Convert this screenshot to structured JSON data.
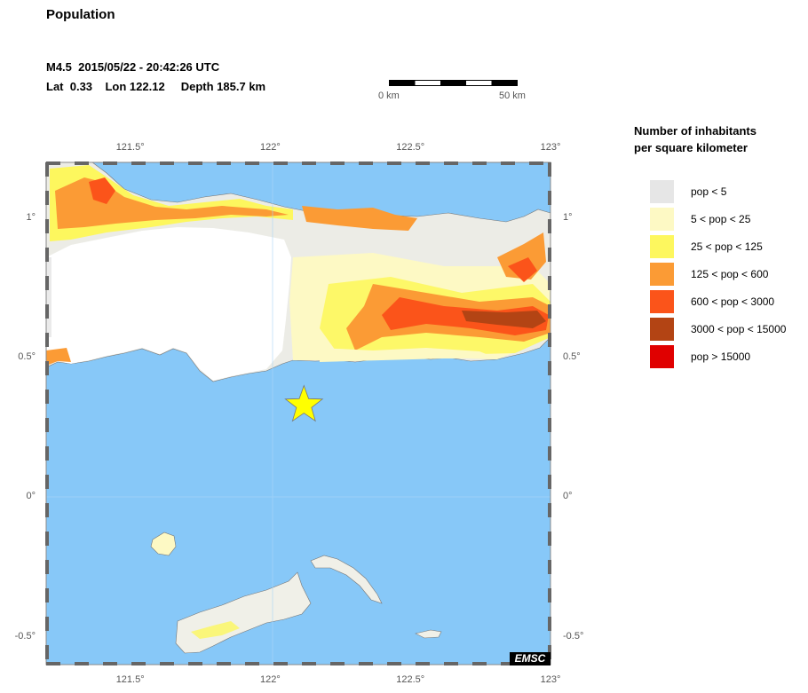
{
  "header": {
    "title": "Population",
    "event_line": "M4.5  2015/05/22 - 20:42:26 UTC",
    "location_line": "Lat  0.33    Lon 122.12     Depth 185.7 km"
  },
  "scale_bar": {
    "start_label": "0 km",
    "end_label": "50 km"
  },
  "map": {
    "lon_min": 121.2,
    "lon_max": 123.0,
    "lat_min": -0.6,
    "lat_max": 1.2,
    "lon_ticks": [
      {
        "value": 121.5,
        "label": "121.5°"
      },
      {
        "value": 122.0,
        "label": "122°"
      },
      {
        "value": 122.5,
        "label": "122.5°"
      },
      {
        "value": 123.0,
        "label": "123°"
      }
    ],
    "lat_ticks": [
      {
        "value": 1.0,
        "label": "1°"
      },
      {
        "value": 0.5,
        "label": "0.5°"
      },
      {
        "value": 0.0,
        "label": "0°"
      },
      {
        "value": -0.5,
        "label": "-0.5°"
      }
    ],
    "epicenter": {
      "lat": 0.33,
      "lon": 122.12,
      "symbol": "star-icon",
      "color": "#ffff00"
    },
    "colors": {
      "sea": "#87c8f8",
      "land_empty": "#ffffff",
      "frame_dark": "#666666"
    },
    "credit": "EMSC"
  },
  "legend": {
    "title_line1": "Number of inhabitants",
    "title_line2": "per square kilometer",
    "items": [
      {
        "label": "pop < 5",
        "color": "#e6e6e6"
      },
      {
        "label": "5 < pop < 25",
        "color": "#fdf9c4"
      },
      {
        "label": "25 < pop < 125",
        "color": "#fdf75e"
      },
      {
        "label": "125 < pop < 600",
        "color": "#fb9b35"
      },
      {
        "label": "600 < pop < 3000",
        "color": "#fb541a"
      },
      {
        "label": "3000 < pop < 15000",
        "color": "#b34414"
      },
      {
        "label": "pop > 15000",
        "color": "#e00000"
      }
    ]
  }
}
